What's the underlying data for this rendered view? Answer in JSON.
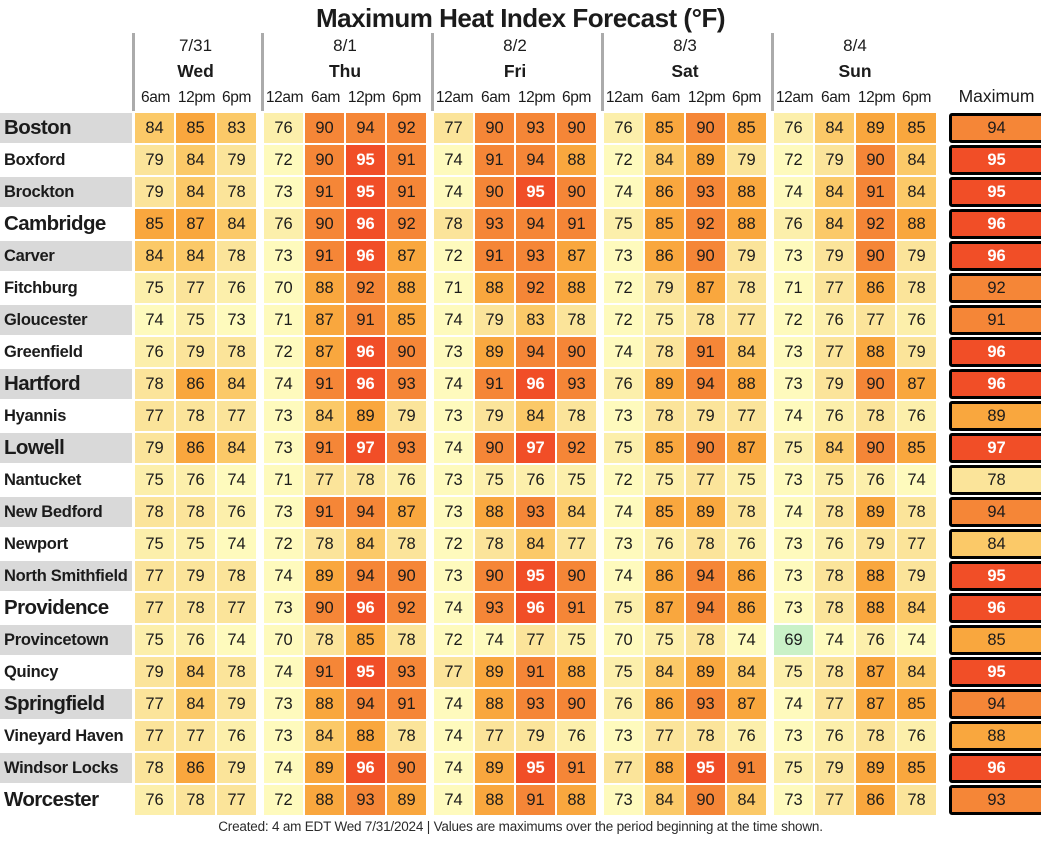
{
  "title": "Maximum Heat Index Forecast (°F)",
  "header": {
    "days": [
      {
        "date": "7/31",
        "day": "Wed",
        "times": [
          "6am",
          "12pm",
          "6pm"
        ]
      },
      {
        "date": "8/1",
        "day": "Thu",
        "times": [
          "12am",
          "6am",
          "12pm",
          "6pm"
        ]
      },
      {
        "date": "8/2",
        "day": "Fri",
        "times": [
          "12am",
          "6am",
          "12pm",
          "6pm"
        ]
      },
      {
        "date": "8/3",
        "day": "Sat",
        "times": [
          "12am",
          "6am",
          "12pm",
          "6pm"
        ]
      },
      {
        "date": "8/4",
        "day": "Sun",
        "times": [
          "12am",
          "6am",
          "12pm",
          "6pm"
        ]
      }
    ],
    "max_label": "Maximum"
  },
  "footer": {
    "text": "Created: 4 am EDT Wed 7/31/2024  |  Values are maximums over the period beginning at the time shown."
  },
  "colors": {
    "label_shade": "#d9d9d9",
    "header_separator": "#ababab",
    "max_border": "#000000",
    "scale": [
      {
        "upto": 69,
        "bg": "#c9f1c7",
        "fg": "#1b1b1b",
        "bold": false
      },
      {
        "upto": 74,
        "bg": "#fefabd",
        "fg": "#1b1b1b",
        "bold": false
      },
      {
        "upto": 76,
        "bg": "#fcefab",
        "fg": "#1b1b1b",
        "bold": false
      },
      {
        "upto": 79,
        "bg": "#fbe49a",
        "fg": "#1b1b1b",
        "bold": false
      },
      {
        "upto": 84,
        "bg": "#fbc968",
        "fg": "#1b1b1b",
        "bold": false
      },
      {
        "upto": 89,
        "bg": "#f9a73e",
        "fg": "#1b1b1b",
        "bold": false
      },
      {
        "upto": 94,
        "bg": "#f58637",
        "fg": "#1b1b1b",
        "bold": false
      },
      {
        "upto": 999,
        "bg": "#f14e27",
        "fg": "#ffffff",
        "bold": true
      }
    ]
  },
  "chart_data": {
    "type": "heatmap",
    "title": "Maximum Heat Index Forecast (°F)",
    "unit": "°F",
    "columns": [
      "7/31 6am",
      "7/31 12pm",
      "7/31 6pm",
      "8/1 12am",
      "8/1 6am",
      "8/1 12pm",
      "8/1 6pm",
      "8/2 12am",
      "8/2 6am",
      "8/2 12pm",
      "8/2 6pm",
      "8/3 12am",
      "8/3 6am",
      "8/3 12pm",
      "8/3 6pm",
      "8/4 12am",
      "8/4 6am",
      "8/4 12pm",
      "8/4 6pm"
    ],
    "max_column": "Maximum",
    "rows": [
      {
        "city": "Boston",
        "major": true,
        "values": [
          84,
          85,
          83,
          76,
          90,
          94,
          92,
          77,
          90,
          93,
          90,
          76,
          85,
          90,
          85,
          76,
          84,
          89,
          85
        ],
        "max": 94
      },
      {
        "city": "Boxford",
        "major": false,
        "values": [
          79,
          84,
          79,
          72,
          90,
          95,
          91,
          74,
          91,
          94,
          88,
          72,
          84,
          89,
          79,
          72,
          79,
          90,
          84
        ],
        "max": 95
      },
      {
        "city": "Brockton",
        "major": false,
        "values": [
          79,
          84,
          78,
          73,
          91,
          95,
          91,
          74,
          90,
          95,
          90,
          74,
          86,
          93,
          88,
          74,
          84,
          91,
          84
        ],
        "max": 95
      },
      {
        "city": "Cambridge",
        "major": true,
        "values": [
          85,
          87,
          84,
          76,
          90,
          96,
          92,
          78,
          93,
          94,
          91,
          75,
          85,
          92,
          88,
          76,
          84,
          92,
          88
        ],
        "max": 96
      },
      {
        "city": "Carver",
        "major": false,
        "values": [
          84,
          84,
          78,
          73,
          91,
          96,
          87,
          72,
          91,
          93,
          87,
          73,
          86,
          90,
          79,
          73,
          79,
          90,
          79
        ],
        "max": 96
      },
      {
        "city": "Fitchburg",
        "major": false,
        "values": [
          75,
          77,
          76,
          70,
          88,
          92,
          88,
          71,
          88,
          92,
          88,
          72,
          79,
          87,
          78,
          71,
          77,
          86,
          78
        ],
        "max": 92
      },
      {
        "city": "Gloucester",
        "major": false,
        "values": [
          74,
          75,
          73,
          71,
          87,
          91,
          85,
          74,
          79,
          83,
          78,
          72,
          75,
          78,
          77,
          72,
          76,
          77,
          76
        ],
        "max": 91
      },
      {
        "city": "Greenfield",
        "major": false,
        "values": [
          76,
          79,
          78,
          72,
          87,
          96,
          90,
          73,
          89,
          94,
          90,
          74,
          78,
          91,
          84,
          73,
          77,
          88,
          79
        ],
        "max": 96
      },
      {
        "city": "Hartford",
        "major": true,
        "values": [
          78,
          86,
          84,
          74,
          91,
          96,
          93,
          74,
          91,
          96,
          93,
          76,
          89,
          94,
          88,
          73,
          79,
          90,
          87
        ],
        "max": 96
      },
      {
        "city": "Hyannis",
        "major": false,
        "values": [
          77,
          78,
          77,
          73,
          84,
          89,
          79,
          73,
          79,
          84,
          78,
          73,
          78,
          79,
          77,
          74,
          76,
          78,
          76
        ],
        "max": 89
      },
      {
        "city": "Lowell",
        "major": true,
        "values": [
          79,
          86,
          84,
          73,
          91,
          97,
          93,
          74,
          90,
          97,
          92,
          75,
          85,
          90,
          87,
          75,
          84,
          90,
          85
        ],
        "max": 97
      },
      {
        "city": "Nantucket",
        "major": false,
        "values": [
          75,
          76,
          74,
          71,
          77,
          78,
          76,
          73,
          75,
          76,
          75,
          72,
          75,
          77,
          75,
          73,
          75,
          76,
          74
        ],
        "max": 78
      },
      {
        "city": "New Bedford",
        "major": false,
        "values": [
          78,
          78,
          76,
          73,
          91,
          94,
          87,
          73,
          88,
          93,
          84,
          74,
          85,
          89,
          78,
          74,
          78,
          89,
          78
        ],
        "max": 94
      },
      {
        "city": "Newport",
        "major": false,
        "values": [
          75,
          75,
          74,
          72,
          78,
          84,
          78,
          72,
          78,
          84,
          77,
          73,
          76,
          78,
          76,
          73,
          76,
          79,
          77
        ],
        "max": 84
      },
      {
        "city": "North Smithfield",
        "major": false,
        "values": [
          77,
          79,
          78,
          74,
          89,
          94,
          90,
          73,
          90,
          95,
          90,
          74,
          86,
          94,
          86,
          73,
          78,
          88,
          79
        ],
        "max": 95
      },
      {
        "city": "Providence",
        "major": true,
        "values": [
          77,
          78,
          77,
          73,
          90,
          96,
          92,
          74,
          93,
          96,
          91,
          75,
          87,
          94,
          86,
          73,
          78,
          88,
          84
        ],
        "max": 96
      },
      {
        "city": "Provincetown",
        "major": false,
        "values": [
          75,
          76,
          74,
          70,
          78,
          85,
          78,
          72,
          74,
          77,
          75,
          70,
          75,
          78,
          74,
          69,
          74,
          76,
          74
        ],
        "max": 85
      },
      {
        "city": "Quincy",
        "major": false,
        "values": [
          79,
          84,
          78,
          74,
          91,
          95,
          93,
          77,
          89,
          91,
          88,
          75,
          84,
          89,
          84,
          75,
          78,
          87,
          84
        ],
        "max": 95
      },
      {
        "city": "Springfield",
        "major": true,
        "values": [
          77,
          84,
          79,
          73,
          88,
          94,
          91,
          74,
          88,
          93,
          90,
          76,
          86,
          93,
          87,
          74,
          77,
          87,
          85
        ],
        "max": 94
      },
      {
        "city": "Vineyard Haven",
        "major": false,
        "values": [
          77,
          77,
          76,
          73,
          84,
          88,
          78,
          74,
          77,
          79,
          76,
          73,
          77,
          78,
          76,
          73,
          76,
          78,
          76
        ],
        "max": 88
      },
      {
        "city": "Windsor Locks",
        "major": false,
        "values": [
          78,
          86,
          79,
          74,
          89,
          96,
          90,
          74,
          89,
          95,
          91,
          77,
          88,
          95,
          91,
          75,
          79,
          89,
          85
        ],
        "max": 96
      },
      {
        "city": "Worcester",
        "major": true,
        "values": [
          76,
          78,
          77,
          72,
          88,
          93,
          89,
          74,
          88,
          91,
          88,
          73,
          84,
          90,
          84,
          73,
          77,
          86,
          78
        ],
        "max": 93
      }
    ]
  }
}
